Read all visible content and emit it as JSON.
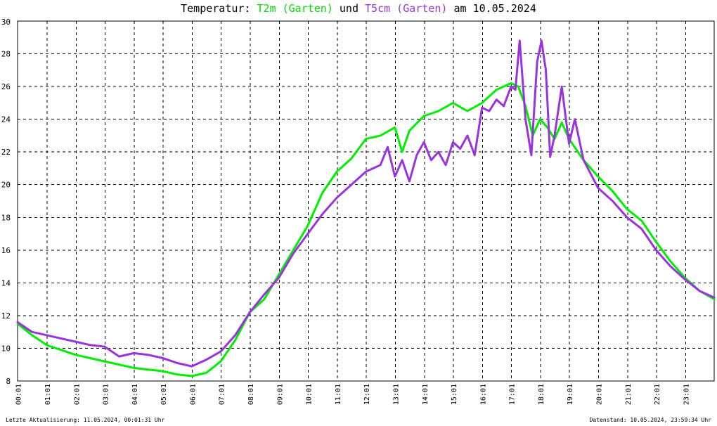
{
  "header": {
    "prefix": "Temperatur: ",
    "series1": "T2m (Garten)",
    "middle": " und ",
    "series2": "T5cm (Garten)",
    "suffix": " am 10.05.2024"
  },
  "footer": {
    "left": "Letzte Aktualisierung: 11.05.2024, 00:01:31 Uhr",
    "right": "Datenstand: 10.05.2024, 23:59:34 Uhr"
  },
  "colors": {
    "t2m": "#00ee00",
    "t5cm": "#9933dd",
    "grid": "#000000",
    "text": "#000000"
  },
  "chart_data": {
    "type": "line",
    "title": "Temperatur: T2m (Garten) und T5cm (Garten) am 10.05.2024",
    "xlabel": "",
    "ylabel": "",
    "x_ticks": [
      "00:01",
      "01:01",
      "02:01",
      "03:01",
      "04:01",
      "05:01",
      "06:01",
      "07:01",
      "08:01",
      "09:01",
      "10:01",
      "11:01",
      "12:01",
      "13:01",
      "14:01",
      "15:01",
      "16:01",
      "17:01",
      "18:01",
      "19:01",
      "20:01",
      "21:01",
      "22:01",
      "23:01"
    ],
    "ylim": [
      8,
      30
    ],
    "y_ticks": [
      8,
      10,
      12,
      14,
      16,
      18,
      20,
      22,
      24,
      26,
      28,
      30
    ],
    "xlim_hours": [
      0,
      24
    ],
    "grid": true,
    "series": [
      {
        "name": "T2m (Garten)",
        "color": "#00ee00",
        "x_hours": [
          0,
          0.5,
          1,
          1.5,
          2,
          2.5,
          3,
          3.5,
          4,
          4.5,
          5,
          5.5,
          6,
          6.5,
          7,
          7.5,
          8,
          8.5,
          9,
          9.5,
          10,
          10.5,
          11,
          11.5,
          12,
          12.5,
          13,
          13.25,
          13.5,
          14,
          14.5,
          15,
          15.5,
          16,
          16.5,
          17,
          17.25,
          17.5,
          17.75,
          18,
          18.25,
          18.5,
          18.75,
          19,
          19.5,
          20,
          20.5,
          21,
          21.5,
          22,
          22.5,
          23,
          23.5,
          24
        ],
        "values": [
          11.5,
          10.8,
          10.2,
          9.9,
          9.6,
          9.4,
          9.2,
          9.0,
          8.8,
          8.7,
          8.6,
          8.4,
          8.3,
          8.5,
          9.2,
          10.5,
          12.2,
          13.0,
          14.5,
          16.0,
          17.5,
          19.5,
          20.8,
          21.6,
          22.8,
          23.0,
          23.5,
          22.0,
          23.3,
          24.2,
          24.5,
          25.0,
          24.5,
          25.0,
          25.8,
          26.2,
          26.0,
          24.8,
          23.0,
          24.0,
          23.5,
          22.8,
          23.8,
          22.8,
          21.5,
          20.5,
          19.6,
          18.5,
          17.8,
          16.5,
          15.3,
          14.3,
          13.5,
          13.0
        ]
      },
      {
        "name": "T5cm (Garten)",
        "color": "#9933dd",
        "x_hours": [
          0,
          0.5,
          1,
          1.5,
          2,
          2.5,
          3,
          3.25,
          3.5,
          4,
          4.5,
          5,
          5.5,
          6,
          6.5,
          7,
          7.5,
          8,
          8.5,
          9,
          9.5,
          10,
          10.5,
          11,
          11.5,
          12,
          12.5,
          12.75,
          13,
          13.25,
          13.5,
          13.75,
          14,
          14.25,
          14.5,
          14.75,
          15,
          15.25,
          15.5,
          15.75,
          16,
          16.25,
          16.5,
          16.75,
          17,
          17.15,
          17.3,
          17.5,
          17.7,
          17.9,
          18.05,
          18.2,
          18.35,
          18.5,
          18.75,
          19,
          19.2,
          19.5,
          20,
          20.5,
          21,
          21.5,
          22,
          22.5,
          23,
          23.5,
          24
        ],
        "values": [
          11.6,
          11.0,
          10.8,
          10.6,
          10.4,
          10.2,
          10.1,
          9.8,
          9.5,
          9.7,
          9.6,
          9.4,
          9.1,
          8.9,
          9.3,
          9.8,
          10.8,
          12.2,
          13.3,
          14.3,
          15.8,
          17.0,
          18.2,
          19.2,
          20.0,
          20.8,
          21.2,
          22.3,
          20.5,
          21.5,
          20.2,
          21.8,
          22.6,
          21.5,
          22.0,
          21.2,
          22.6,
          22.2,
          23.0,
          21.8,
          24.7,
          24.5,
          25.2,
          24.8,
          26.0,
          25.8,
          28.8,
          24.0,
          21.8,
          27.5,
          28.8,
          27.0,
          21.7,
          23.0,
          26.0,
          22.5,
          24.0,
          21.5,
          19.8,
          19.0,
          18.0,
          17.3,
          16.0,
          15.0,
          14.2,
          13.5,
          13.1
        ]
      }
    ]
  }
}
